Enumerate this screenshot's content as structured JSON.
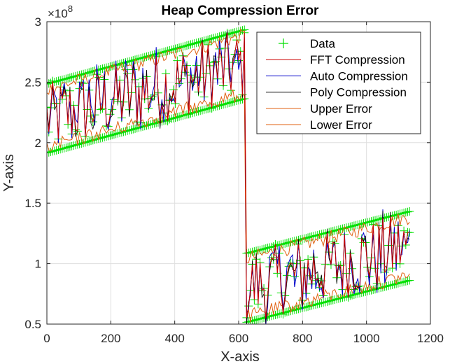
{
  "chart_data": {
    "type": "line",
    "title": "Heap Compression Error",
    "xlabel": "X-axis",
    "ylabel": "Y-axis",
    "xlim": [
      0,
      1200
    ],
    "ylim": [
      50000000,
      300000000
    ],
    "y_exponent_label": "×10",
    "y_exponent_power": "8",
    "x_ticks": [
      0,
      200,
      400,
      600,
      800,
      1000,
      1200
    ],
    "x_tick_labels": [
      "0",
      "200",
      "400",
      "600",
      "800",
      "1000",
      "1200"
    ],
    "y_ticks": [
      50000000,
      100000000,
      150000000,
      200000000,
      250000000,
      300000000
    ],
    "y_tick_labels": [
      "0.5",
      "1",
      "1.5",
      "2",
      "2.5",
      "3"
    ],
    "grid": true,
    "legend_position": "top-right",
    "segments": [
      {
        "x_start": 0,
        "x_end": 620,
        "y_start": 220000000,
        "y_end": 265000000,
        "noise_amplitude": 30000000
      },
      {
        "x_start": 625,
        "x_end": 1140,
        "y_start": 80000000,
        "y_end": 115000000,
        "noise_amplitude": 30000000
      }
    ],
    "series": [
      {
        "name": "Data",
        "style": "markers",
        "marker": "+",
        "color": "#00e000"
      },
      {
        "name": "FFT Compression",
        "style": "line",
        "color": "#cc0000"
      },
      {
        "name": "Auto Compression",
        "style": "line",
        "color": "#0000cc"
      },
      {
        "name": "Poly Compression",
        "style": "line",
        "color": "#000000"
      },
      {
        "name": "Upper Error",
        "style": "line",
        "color": "#e06010"
      },
      {
        "name": "Lower Error",
        "style": "line",
        "color": "#e06010"
      }
    ]
  }
}
